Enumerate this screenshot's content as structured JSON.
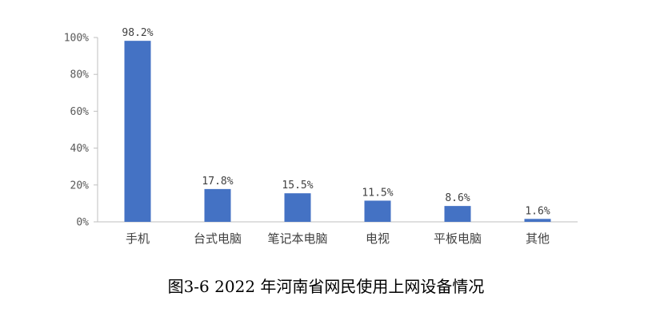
{
  "caption": "图3-6 2022 年河南省网民使用上网设备情况",
  "colors": {
    "bar": "#4472C4",
    "axis": "#bfbfbf",
    "text": "#595959"
  },
  "chart_data": {
    "type": "bar",
    "categories": [
      "手机",
      "台式电脑",
      "笔记本电脑",
      "电视",
      "平板电脑",
      "其他"
    ],
    "values": [
      98.2,
      17.8,
      15.5,
      11.5,
      8.6,
      1.6
    ],
    "data_labels": [
      "98.2%",
      "17.8%",
      "15.5%",
      "11.5%",
      "8.6%",
      "1.6%"
    ],
    "y_ticks": [
      0,
      20,
      40,
      60,
      80,
      100
    ],
    "y_tick_labels": [
      "0%",
      "20%",
      "40%",
      "60%",
      "80%",
      "100%"
    ],
    "ylim": [
      0,
      100
    ],
    "grid": false,
    "title": "",
    "xlabel": "",
    "ylabel": ""
  }
}
